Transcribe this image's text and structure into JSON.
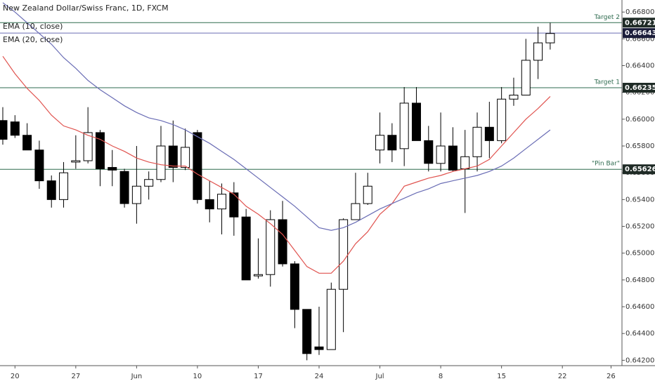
{
  "chart_data": {
    "type": "candlestick",
    "title": "New Zealand Dollar/Swiss Franc, 1D, FXCM",
    "up_color": "#ffffff",
    "down_color": "#000000",
    "open": [
      0.6599,
      0.6598,
      0.6588,
      0.6577,
      0.6554,
      0.654,
      0.6568,
      0.6569,
      0.659,
      0.6564,
      0.6561,
      0.6537,
      0.655,
      0.6555,
      0.658,
      0.6564,
      0.659,
      0.654,
      0.6533,
      0.6545,
      0.6527,
      0.6483,
      0.6484,
      0.6525,
      0.6492,
      0.6458,
      0.643,
      0.6428,
      0.6473,
      0.6525,
      0.6537,
      0.6577,
      0.6588,
      0.6578,
      0.6612,
      0.6584,
      0.6567,
      0.658,
      0.6563,
      0.6572,
      0.6594,
      0.6584,
      0.6615,
      0.6618,
      0.6644,
      0.6657
    ],
    "high": [
      0.6609,
      0.6603,
      0.6597,
      0.6584,
      0.6558,
      0.6568,
      0.6588,
      0.6609,
      0.6592,
      0.6577,
      0.6563,
      0.658,
      0.6561,
      0.6595,
      0.6599,
      0.6593,
      0.6592,
      0.6554,
      0.6552,
      0.6553,
      0.6533,
      0.6511,
      0.6532,
      0.6539,
      0.6494,
      0.6458,
      0.646,
      0.6478,
      0.6526,
      0.656,
      0.656,
      0.6605,
      0.6597,
      0.6624,
      0.6624,
      0.6595,
      0.6605,
      0.6594,
      0.6592,
      0.6605,
      0.6613,
      0.6624,
      0.6631,
      0.666,
      0.6669,
      0.6672
    ],
    "low": [
      0.6581,
      0.6586,
      0.6577,
      0.6548,
      0.6534,
      0.6534,
      0.6563,
      0.6567,
      0.655,
      0.655,
      0.6534,
      0.6522,
      0.654,
      0.6553,
      0.6553,
      0.6562,
      0.6537,
      0.6523,
      0.6514,
      0.6513,
      0.648,
      0.6481,
      0.6475,
      0.649,
      0.6444,
      0.642,
      0.6424,
      0.6428,
      0.6441,
      0.6525,
      0.6536,
      0.6567,
      0.6568,
      0.6565,
      0.6584,
      0.6561,
      0.6561,
      0.6561,
      0.653,
      0.6561,
      0.6571,
      0.6582,
      0.661,
      0.6618,
      0.663,
      0.6652
    ],
    "close": [
      0.6585,
      0.6588,
      0.6577,
      0.6554,
      0.654,
      0.656,
      0.6569,
      0.659,
      0.6563,
      0.6562,
      0.6537,
      0.655,
      0.6555,
      0.658,
      0.6564,
      0.6579,
      0.654,
      0.6533,
      0.6544,
      0.6527,
      0.648,
      0.6484,
      0.6525,
      0.6492,
      0.6458,
      0.6425,
      0.6428,
      0.6473,
      0.6525,
      0.6537,
      0.655,
      0.6588,
      0.6577,
      0.6612,
      0.6584,
      0.6567,
      0.658,
      0.6562,
      0.6572,
      0.6594,
      0.6584,
      0.6615,
      0.6618,
      0.6644,
      0.6657,
      0.6664
    ],
    "indicators": [
      {
        "name": "EMA (10, close)",
        "color": "#e0534f",
        "values": [
          0.6647,
          0.6634,
          0.6623,
          0.6614,
          0.6603,
          0.6595,
          0.6592,
          0.6588,
          0.6585,
          0.658,
          0.6576,
          0.6571,
          0.6568,
          0.6566,
          0.6565,
          0.6565,
          0.6559,
          0.6554,
          0.6549,
          0.6544,
          0.6535,
          0.6529,
          0.6522,
          0.6514,
          0.6502,
          0.649,
          0.6485,
          0.6485,
          0.6494,
          0.6507,
          0.6516,
          0.6529,
          0.6537,
          0.655,
          0.6553,
          0.6556,
          0.6558,
          0.6561,
          0.6563,
          0.6565,
          0.657,
          0.658,
          0.659,
          0.66,
          0.6608,
          0.6617
        ]
      },
      {
        "name": "EMA (20, close)",
        "color": "#6a6db5",
        "values": [
          0.6687,
          0.668,
          0.6672,
          0.6664,
          0.6656,
          0.6646,
          0.6638,
          0.6629,
          0.6622,
          0.6616,
          0.661,
          0.6605,
          0.6601,
          0.6599,
          0.6596,
          0.6592,
          0.6587,
          0.6582,
          0.6576,
          0.657,
          0.6563,
          0.6556,
          0.6549,
          0.6542,
          0.6535,
          0.6527,
          0.6519,
          0.6517,
          0.6519,
          0.6523,
          0.6528,
          0.6533,
          0.6537,
          0.6541,
          0.6545,
          0.6548,
          0.6552,
          0.6554,
          0.6556,
          0.6558,
          0.6561,
          0.6565,
          0.6571,
          0.6578,
          0.6585,
          0.6592
        ]
      }
    ],
    "levels": [
      {
        "label": "Target 2",
        "value": 0.66721,
        "value_label": "0.66721",
        "color": "#2e6b4f"
      },
      {
        "value": 0.66643,
        "value_label": "0.66643",
        "color": "#6a6db5"
      },
      {
        "label": "Target 1",
        "value": 0.66235,
        "value_label": "0.66235",
        "color": "#2e6b4f"
      },
      {
        "label": "\"Pin Bar\"",
        "value": 0.65626,
        "value_label": "0.65626",
        "color": "#2e6b4f"
      }
    ],
    "xlim": [
      -0.23,
      50.9
    ],
    "xticks": [
      {
        "value": 1,
        "label": "20"
      },
      {
        "value": 6,
        "label": "27"
      },
      {
        "value": 11,
        "label": "Jun"
      },
      {
        "value": 16,
        "label": "10"
      },
      {
        "value": 21,
        "label": "17"
      },
      {
        "value": 26,
        "label": "24"
      },
      {
        "value": 31,
        "label": "Jul"
      },
      {
        "value": 36,
        "label": "8"
      },
      {
        "value": 41,
        "label": "15"
      },
      {
        "value": 46,
        "label": "22"
      },
      {
        "value": 50,
        "label": "26"
      }
    ],
    "ylim": [
      0.6416,
      0.6689
    ],
    "yticks": [
      {
        "value": 0.668,
        "label": "0.66800"
      },
      {
        "value": 0.666,
        "label": "0.66600"
      },
      {
        "value": 0.664,
        "label": "0.66400"
      },
      {
        "value": 0.662,
        "label": "0.66200"
      },
      {
        "value": 0.66,
        "label": "0.66000"
      },
      {
        "value": 0.658,
        "label": "0.65800"
      },
      {
        "value": 0.656,
        "label": "0.65600"
      },
      {
        "value": 0.654,
        "label": "0.65400"
      },
      {
        "value": 0.652,
        "label": "0.65200"
      },
      {
        "value": 0.65,
        "label": "0.65000"
      },
      {
        "value": 0.648,
        "label": "0.64800"
      },
      {
        "value": 0.646,
        "label": "0.64600"
      },
      {
        "value": 0.644,
        "label": "0.64400"
      },
      {
        "value": 0.642,
        "label": "0.64200"
      }
    ]
  }
}
